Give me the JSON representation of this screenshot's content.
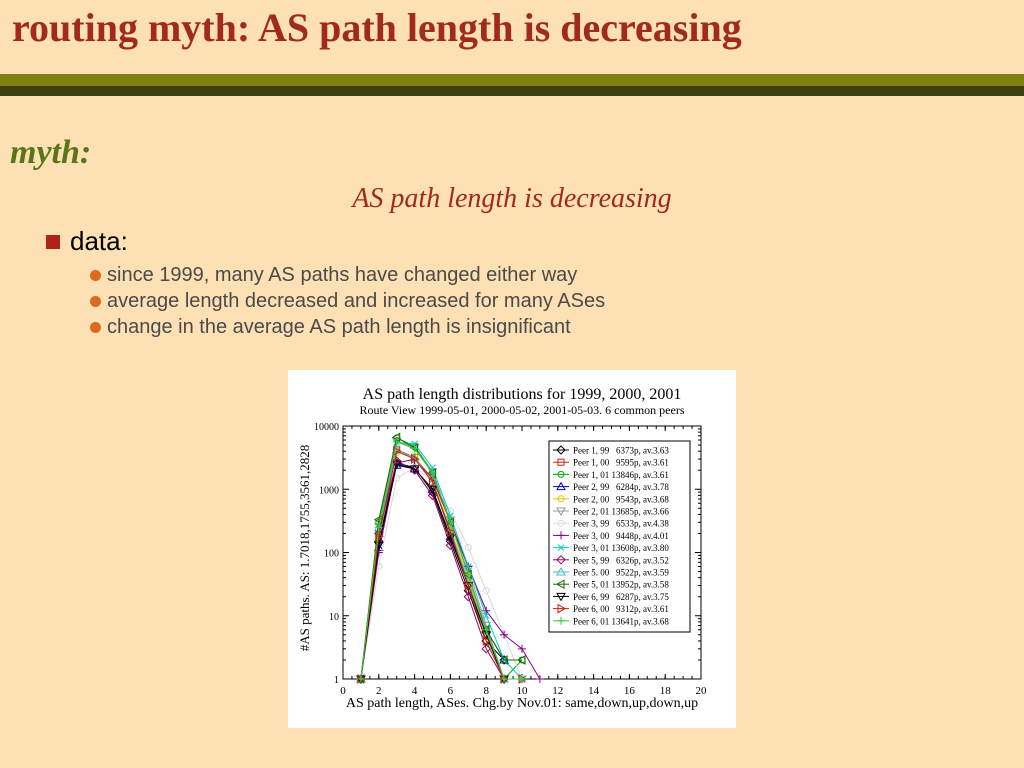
{
  "slide": {
    "title": "routing myth: AS path length is decreasing",
    "myth_label": "myth:",
    "myth_statement": "AS path length is decreasing",
    "data_label": "data:",
    "bullets": [
      "since 1999, many AS paths have changed either way",
      "average length decreased and increased for many ASes",
      "change in the average AS path length is insignificant"
    ]
  },
  "colors": {
    "title": "#a02a1e",
    "myth": "#5a7515",
    "background": "#fde0b3",
    "bar_olive": "#7f8010",
    "bar_dark": "#3c3f10",
    "square_bullet": "#b02418",
    "dot_bullet": "#d96a20"
  },
  "chart_data": {
    "type": "line",
    "title": "AS path length distributions for 1999, 2000, 2001",
    "subtitle": "Route View 1999-05-01, 2000-05-02, 2001-05-03. 6 common peers",
    "xlabel": "AS path length, ASes. Chg.by Nov.01: same,down,up,down,up",
    "ylabel": "#AS paths. AS: 1.7018,1755,3561,2828",
    "xlim": [
      0,
      20
    ],
    "ylim": [
      1,
      10000
    ],
    "yscale": "log",
    "xticks": [
      0,
      2,
      4,
      6,
      8,
      10,
      12,
      14,
      16,
      18,
      20
    ],
    "yticks": [
      1,
      10,
      100,
      1000,
      10000
    ],
    "ytick_labels": [
      "1",
      "10",
      "100",
      "1000",
      "10000"
    ],
    "legend_position": "right",
    "series": [
      {
        "name": "Peer 1, 99   6373p, av.3.63",
        "color": "#000000",
        "marker": "diamond",
        "x": [
          1,
          2,
          3,
          4,
          5,
          6,
          7,
          8,
          9
        ],
        "y": [
          1,
          150,
          2600,
          2200,
          900,
          150,
          25,
          4,
          2
        ]
      },
      {
        "name": "Peer 1, 00   9595p, av.3.61",
        "color": "#cc2200",
        "marker": "square",
        "x": [
          1,
          2,
          3,
          4,
          5,
          6,
          7,
          8,
          9,
          10
        ],
        "y": [
          1,
          200,
          4200,
          3200,
          1300,
          200,
          30,
          5,
          1,
          1
        ]
      },
      {
        "name": "Peer 1, 01 13846p, av.3.61",
        "color": "#00aa00",
        "marker": "circle",
        "x": [
          1,
          2,
          3,
          4,
          5,
          6,
          7,
          8,
          9,
          10
        ],
        "y": [
          1,
          300,
          6500,
          4800,
          1900,
          320,
          45,
          6,
          1,
          2
        ]
      },
      {
        "name": "Peer 2, 99   6284p, av.3.78",
        "color": "#0000cc",
        "marker": "triangle-up",
        "x": [
          1,
          2,
          3,
          4,
          5,
          6,
          7,
          8,
          9
        ],
        "y": [
          1,
          120,
          2400,
          2100,
          1000,
          180,
          35,
          6,
          2
        ]
      },
      {
        "name": "Peer 2, 00   9543p, av.3.68",
        "color": "#e6c200",
        "marker": "circle",
        "x": [
          1,
          2,
          3,
          4,
          5,
          6,
          7,
          8,
          9
        ],
        "y": [
          1,
          180,
          3800,
          3300,
          1400,
          240,
          40,
          5,
          1
        ]
      },
      {
        "name": "Peer 2, 01 13685p, av.3.66",
        "color": "#999999",
        "marker": "triangle-down",
        "x": [
          1,
          2,
          3,
          4,
          5,
          6,
          7,
          8,
          9,
          10
        ],
        "y": [
          1,
          260,
          5800,
          4600,
          1900,
          330,
          55,
          7,
          1,
          1
        ]
      },
      {
        "name": "Peer 3, 99   6533p, av.4.38",
        "color": "#d8d8d8",
        "marker": "circle",
        "x": [
          1,
          2,
          3,
          4,
          5,
          6,
          7,
          8,
          9,
          10
        ],
        "y": [
          1,
          60,
          1500,
          2200,
          1400,
          450,
          120,
          25,
          5,
          1
        ]
      },
      {
        "name": "Peer 3, 00   9448p, av.4.01",
        "color": "#880088",
        "marker": "plus",
        "x": [
          1,
          2,
          3,
          4,
          5,
          6,
          7,
          8,
          9,
          10,
          11
        ],
        "y": [
          1,
          100,
          2600,
          3000,
          1500,
          300,
          60,
          12,
          5,
          3,
          1
        ]
      },
      {
        "name": "Peer 3, 01 13608p, av.3.80",
        "color": "#00cccc",
        "marker": "cross",
        "x": [
          1,
          2,
          3,
          4,
          5,
          6,
          7,
          8,
          9,
          10
        ],
        "y": [
          1,
          200,
          5500,
          5200,
          2200,
          380,
          60,
          10,
          2,
          1
        ]
      },
      {
        "name": "Peer 5, 99   6326p, av.3.52",
        "color": "#990066",
        "marker": "diamond",
        "x": [
          1,
          2,
          3,
          4,
          5,
          6,
          7,
          8,
          9
        ],
        "y": [
          1,
          200,
          2800,
          2000,
          800,
          130,
          20,
          3,
          1
        ]
      },
      {
        "name": "Peer 5. 00   9522p, av.3.59",
        "color": "#44bbcc",
        "marker": "triangle-up",
        "x": [
          1,
          2,
          3,
          4,
          5,
          6,
          7,
          8,
          9
        ],
        "y": [
          1,
          250,
          4200,
          3100,
          1300,
          220,
          35,
          5,
          1
        ]
      },
      {
        "name": "Peer 5, 01 13952p, av.3.58",
        "color": "#226600",
        "marker": "triangle-left",
        "x": [
          1,
          2,
          3,
          4,
          5,
          6,
          7,
          8,
          9,
          10
        ],
        "y": [
          1,
          330,
          6600,
          4500,
          1800,
          300,
          45,
          6,
          2,
          2
        ]
      },
      {
        "name": "Peer 6, 99   6287p, av.3.75",
        "color": "#000000",
        "marker": "triangle-down",
        "x": [
          1,
          2,
          3,
          4,
          5,
          6,
          7,
          8,
          9
        ],
        "y": [
          1,
          130,
          2500,
          2100,
          1000,
          170,
          30,
          5,
          1
        ]
      },
      {
        "name": "Peer 6, 00   9312p, av.3.61",
        "color": "#cc2200",
        "marker": "triangle-right",
        "x": [
          1,
          2,
          3,
          4,
          5,
          6,
          7,
          8,
          9,
          10
        ],
        "y": [
          1,
          180,
          4000,
          3000,
          1300,
          210,
          30,
          4,
          1,
          1
        ]
      },
      {
        "name": "Peer 6, 01 13641p, av.3.68",
        "color": "#33cc33",
        "marker": "plus",
        "x": [
          1,
          2,
          3,
          4,
          5,
          6,
          7,
          8,
          9,
          10
        ],
        "y": [
          1,
          250,
          5600,
          4400,
          1800,
          300,
          45,
          6,
          1,
          1
        ]
      }
    ]
  }
}
